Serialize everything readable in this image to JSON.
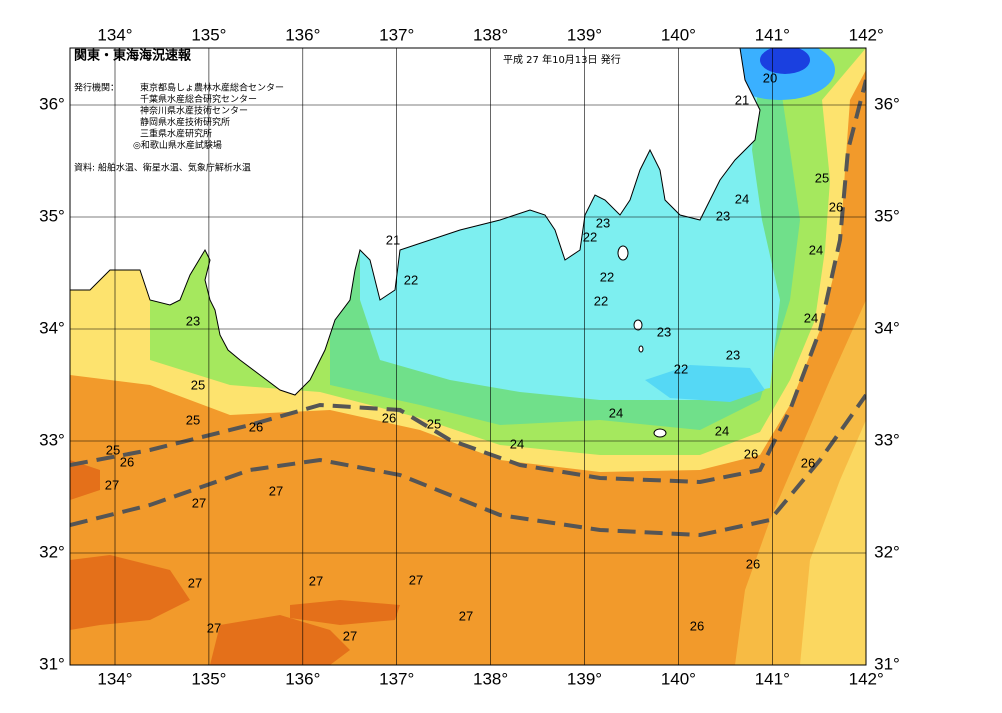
{
  "header": {
    "title": "関東・東海海況速報",
    "date": "平成 27 年10月13日 発行",
    "issuer_label": "発行機関：",
    "issuers": [
      "東京都島しょ農林水産総合センター",
      "千葉県水産総合研究センター",
      "神奈川県水産技術センター",
      "静岡県水産技術研究所",
      "三重県水産研究所",
      "◎和歌山県水産試験場"
    ],
    "source": "資料: 船舶水温、衛星水温、気象庁解析水温"
  },
  "map": {
    "lon_ticks": [
      {
        "value": 134,
        "label": "134°"
      },
      {
        "value": 135,
        "label": "135°"
      },
      {
        "value": 136,
        "label": "136°"
      },
      {
        "value": 137,
        "label": "137°"
      },
      {
        "value": 138,
        "label": "138°"
      },
      {
        "value": 139,
        "label": "139°"
      },
      {
        "value": 140,
        "label": "140°"
      },
      {
        "value": 141,
        "label": "141°"
      },
      {
        "value": 142,
        "label": "142°"
      }
    ],
    "lat_ticks": [
      {
        "value": 31,
        "label": "31°"
      },
      {
        "value": 32,
        "label": "32°"
      },
      {
        "value": 33,
        "label": "33°"
      },
      {
        "value": 34,
        "label": "34°"
      },
      {
        "value": 35,
        "label": "35°"
      },
      {
        "value": 36,
        "label": "36°"
      }
    ],
    "contour_labels": [
      20,
      21,
      25,
      26,
      24,
      23,
      24,
      23,
      22,
      21,
      22,
      22,
      22,
      23,
      24,
      23,
      23,
      22,
      25,
      25,
      26,
      26,
      25,
      24,
      24,
      24,
      26,
      26,
      25,
      26,
      27,
      27,
      27,
      26,
      27,
      27,
      27,
      27,
      27,
      27,
      26
    ]
  }
}
